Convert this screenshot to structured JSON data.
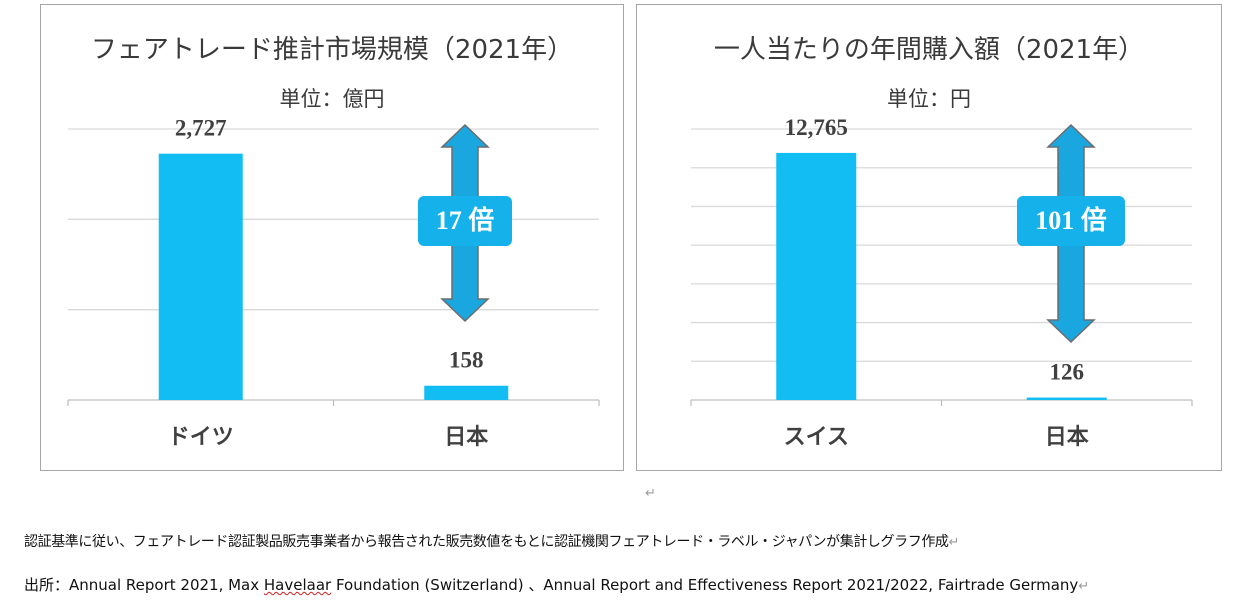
{
  "chart_data": [
    {
      "type": "bar",
      "title": "フェアトレード推計市場規模（2021年）",
      "unit": "単位：億円",
      "categories": [
        "ドイツ",
        "日本"
      ],
      "values": [
        2727,
        158
      ],
      "value_labels": [
        "2,727",
        "158"
      ],
      "ylim": [
        0,
        3000
      ],
      "gridlines": 3,
      "ratio_label": "17 倍",
      "bar_color": "#11bdf2",
      "arrow_color": "#1aa7df"
    },
    {
      "type": "bar",
      "title": "一人当たりの年間購入額（2021年）",
      "unit": "単位：円",
      "categories": [
        "スイス",
        "日本"
      ],
      "values": [
        12765,
        126
      ],
      "value_labels": [
        "12,765",
        "126"
      ],
      "ylim": [
        0,
        14000
      ],
      "gridlines": 7,
      "ratio_label": "101 倍",
      "bar_color": "#11bdf2",
      "arrow_color": "#1aa7df"
    }
  ],
  "notes": {
    "line1": "認証基準に従い、フェアトレード認証製品販売事業者から報告された販売数値をもとに認証機関フェアトレード・ラベル・ジャパンが集計しグラフ作成",
    "line2_pre": "出所：Annual Report 2021, Max ",
    "line2_squiggle": "Havelaar",
    "line2_post": " Foundation (Switzerland) 、Annual Report and Effectiveness Report 2021/2022, Fairtrade Germany",
    "return_mark": "↵"
  }
}
